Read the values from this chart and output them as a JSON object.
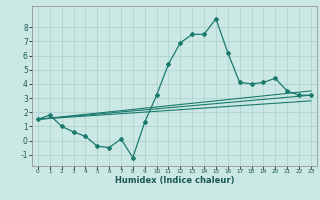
{
  "xlabel": "Humidex (Indice chaleur)",
  "background_color": "#cce8e4",
  "grid_color": "#b0d4d0",
  "line_color": "#1a7a6e",
  "xlim": [
    -0.5,
    23.5
  ],
  "ylim": [
    -1.8,
    9.5
  ],
  "xticks": [
    0,
    1,
    2,
    3,
    4,
    5,
    6,
    7,
    8,
    9,
    10,
    11,
    12,
    13,
    14,
    15,
    16,
    17,
    18,
    19,
    20,
    21,
    22,
    23
  ],
  "yticks": [
    -1,
    0,
    1,
    2,
    3,
    4,
    5,
    6,
    7,
    8
  ],
  "main_line_x": [
    0,
    1,
    2,
    3,
    4,
    5,
    6,
    7,
    8,
    9,
    10,
    11,
    12,
    13,
    14,
    15,
    16,
    17,
    18,
    19,
    20,
    21,
    22,
    23
  ],
  "main_line_y": [
    1.5,
    1.8,
    1.0,
    0.6,
    0.3,
    -0.4,
    -0.5,
    0.1,
    -1.2,
    1.3,
    3.2,
    5.4,
    6.9,
    7.5,
    7.5,
    8.6,
    6.2,
    4.1,
    4.0,
    4.1,
    4.4,
    3.5,
    3.2,
    3.2
  ],
  "line2_x": [
    0,
    23
  ],
  "line2_y": [
    1.5,
    3.2
  ],
  "line3_x": [
    0,
    23
  ],
  "line3_y": [
    1.5,
    2.8
  ],
  "line4_x": [
    0,
    23
  ],
  "line4_y": [
    1.5,
    3.5
  ]
}
